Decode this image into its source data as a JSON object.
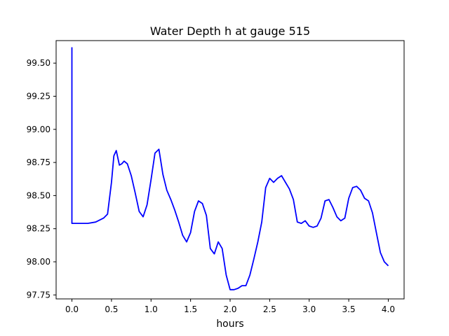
{
  "chart_data": {
    "type": "line",
    "title": "Water Depth h at gauge 515",
    "xlabel": "hours",
    "ylabel": "",
    "xlim": [
      -0.2,
      4.2
    ],
    "ylim": [
      97.72,
      99.67
    ],
    "grid": false,
    "xticks": [
      0.0,
      0.5,
      1.0,
      1.5,
      2.0,
      2.5,
      3.0,
      3.5,
      4.0
    ],
    "xtick_labels": [
      "0.0",
      "0.5",
      "1.0",
      "1.5",
      "2.0",
      "2.5",
      "3.0",
      "3.5",
      "4.0"
    ],
    "yticks": [
      97.75,
      98.0,
      98.25,
      98.5,
      98.75,
      99.0,
      99.25,
      99.5
    ],
    "ytick_labels": [
      "97.75",
      "98.00",
      "98.25",
      "98.50",
      "98.75",
      "99.00",
      "99.25",
      "99.50"
    ],
    "series": [
      {
        "color": "#0000ff",
        "x": [
          0.0,
          0.0,
          0.0,
          0.1,
          0.2,
          0.3,
          0.4,
          0.45,
          0.5,
          0.53,
          0.56,
          0.6,
          0.63,
          0.66,
          0.7,
          0.75,
          0.8,
          0.85,
          0.9,
          0.95,
          1.0,
          1.05,
          1.1,
          1.15,
          1.2,
          1.25,
          1.3,
          1.35,
          1.4,
          1.45,
          1.5,
          1.55,
          1.6,
          1.65,
          1.7,
          1.75,
          1.8,
          1.85,
          1.9,
          1.95,
          2.0,
          2.05,
          2.1,
          2.15,
          2.2,
          2.25,
          2.3,
          2.35,
          2.4,
          2.45,
          2.5,
          2.55,
          2.6,
          2.65,
          2.7,
          2.75,
          2.8,
          2.85,
          2.9,
          2.95,
          3.0,
          3.05,
          3.1,
          3.15,
          3.2,
          3.25,
          3.3,
          3.35,
          3.4,
          3.45,
          3.5,
          3.55,
          3.6,
          3.65,
          3.7,
          3.75,
          3.8,
          3.85,
          3.9,
          3.95,
          4.0
        ],
        "y": [
          99.62,
          99.4,
          98.29,
          98.29,
          98.29,
          98.3,
          98.33,
          98.36,
          98.6,
          98.8,
          98.84,
          98.73,
          98.74,
          98.76,
          98.74,
          98.65,
          98.52,
          98.38,
          98.34,
          98.43,
          98.62,
          98.82,
          98.85,
          98.66,
          98.54,
          98.47,
          98.39,
          98.3,
          98.2,
          98.15,
          98.22,
          98.38,
          98.46,
          98.44,
          98.35,
          98.1,
          98.06,
          98.15,
          98.1,
          97.9,
          97.79,
          97.79,
          97.8,
          97.82,
          97.82,
          97.9,
          98.02,
          98.15,
          98.3,
          98.56,
          98.63,
          98.6,
          98.63,
          98.65,
          98.6,
          98.55,
          98.47,
          98.3,
          98.29,
          98.31,
          98.27,
          98.26,
          98.27,
          98.33,
          98.46,
          98.47,
          98.41,
          98.34,
          98.31,
          98.33,
          98.48,
          98.56,
          98.57,
          98.54,
          98.48,
          98.46,
          98.37,
          98.22,
          98.07,
          98.0,
          97.97
        ]
      }
    ]
  }
}
